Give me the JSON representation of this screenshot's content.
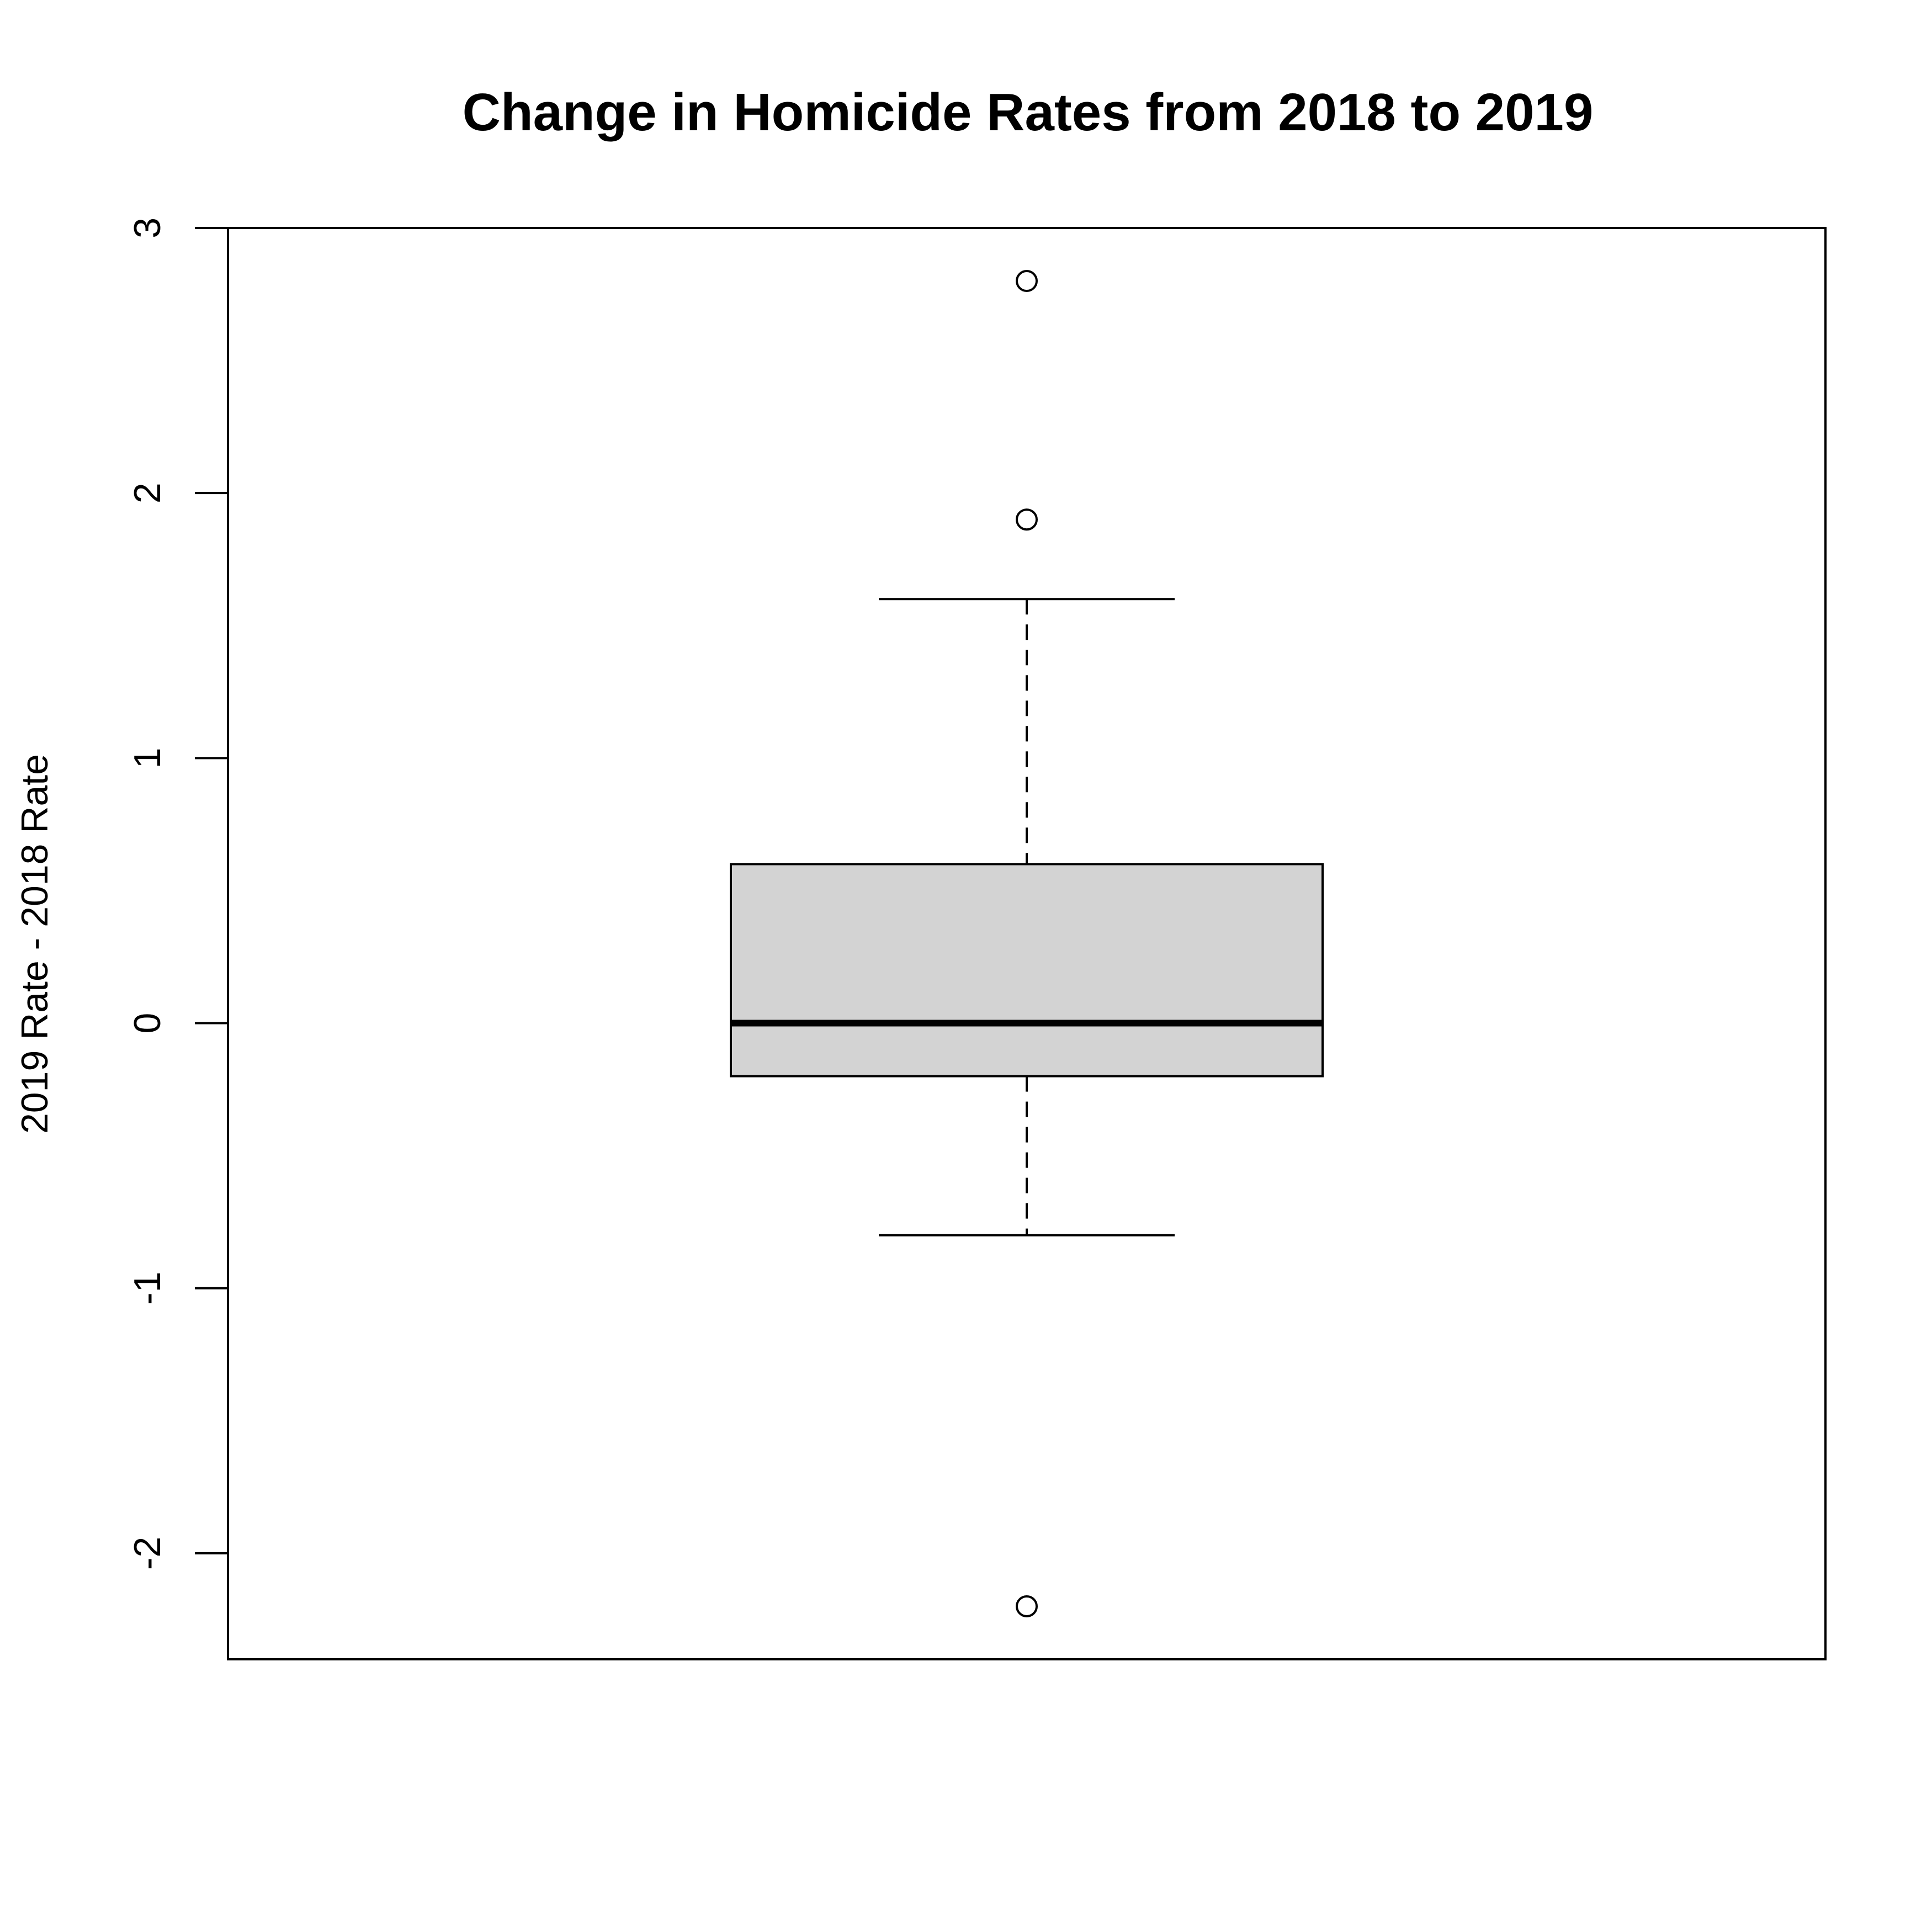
{
  "chart_data": {
    "type": "box",
    "title": "Change in Homicide Rates from 2018 to 2019",
    "xlabel": "",
    "ylabel": "2019 Rate - 2018 Rate",
    "ylim": [
      -2.4,
      3.0
    ],
    "yticks": [
      -2,
      -1,
      0,
      1,
      2,
      3
    ],
    "grid": false,
    "box": {
      "whisker_low": -0.8,
      "q1": -0.2,
      "median": 0.0,
      "q3": 0.6,
      "whisker_high": 1.6
    },
    "outliers": [
      2.8,
      1.9,
      -2.2
    ],
    "colors": {
      "box_fill": "#d3d3d3",
      "stroke": "#000000"
    }
  }
}
